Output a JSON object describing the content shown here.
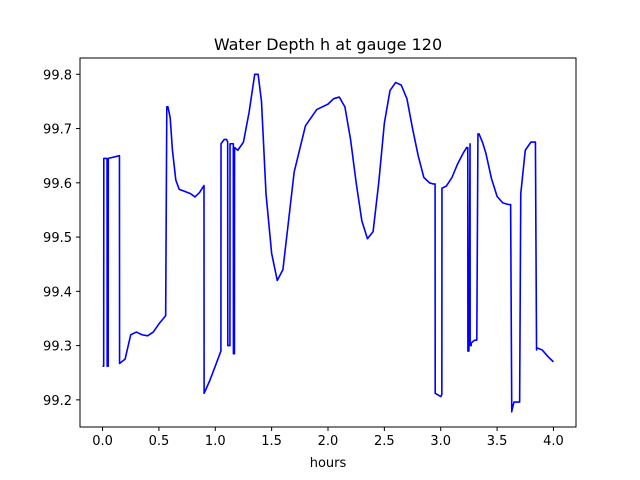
{
  "chart_data": {
    "type": "line",
    "title": "Water Depth h at gauge 120",
    "xlabel": "hours",
    "ylabel": "",
    "xlim": [
      -0.2,
      4.2
    ],
    "ylim": [
      99.15,
      99.83
    ],
    "xticks": [
      0.0,
      0.5,
      1.0,
      1.5,
      2.0,
      2.5,
      3.0,
      3.5,
      4.0
    ],
    "xtick_labels": [
      "0.0",
      "0.5",
      "1.0",
      "1.5",
      "2.0",
      "2.5",
      "3.0",
      "3.5",
      "4.0"
    ],
    "yticks": [
      99.2,
      99.3,
      99.4,
      99.5,
      99.6,
      99.7,
      99.8
    ],
    "ytick_labels": [
      "99.2",
      "99.3",
      "99.4",
      "99.5",
      "99.6",
      "99.7",
      "99.8"
    ],
    "grid": false,
    "color": "#0000ff",
    "series": [
      {
        "x": [
          0.0,
          0.01,
          0.011,
          0.04,
          0.041,
          0.05,
          0.051,
          0.15,
          0.151,
          0.2,
          0.25,
          0.3,
          0.35,
          0.4,
          0.45,
          0.5,
          0.56,
          0.57,
          0.58,
          0.6,
          0.62,
          0.65,
          0.68,
          0.72,
          0.78,
          0.82,
          0.86,
          0.9,
          0.901,
          0.95,
          1.0,
          1.05,
          1.051,
          1.08,
          1.1,
          1.11,
          1.111,
          1.13,
          1.131,
          1.15,
          1.16,
          1.161,
          1.17,
          1.171,
          1.2,
          1.25,
          1.3,
          1.35,
          1.38,
          1.41,
          1.45,
          1.5,
          1.55,
          1.6,
          1.65,
          1.7,
          1.8,
          1.9,
          2.0,
          2.05,
          2.1,
          2.15,
          2.2,
          2.25,
          2.3,
          2.35,
          2.4,
          2.45,
          2.5,
          2.55,
          2.6,
          2.65,
          2.7,
          2.75,
          2.8,
          2.85,
          2.9,
          2.93,
          2.95,
          2.951,
          3.0,
          3.01,
          3.011,
          3.05,
          3.1,
          3.15,
          3.2,
          3.23,
          3.24,
          3.241,
          3.25,
          3.26,
          3.261,
          3.27,
          3.271,
          3.3,
          3.32,
          3.33,
          3.34,
          3.35,
          3.37,
          3.4,
          3.45,
          3.5,
          3.55,
          3.6,
          3.62,
          3.63,
          3.631,
          3.65,
          3.7,
          3.71,
          3.72,
          3.75,
          3.8,
          3.84,
          3.85,
          3.851,
          3.9,
          3.95,
          4.0
        ],
        "y": [
          99.262,
          99.262,
          99.645,
          99.645,
          99.262,
          99.262,
          99.645,
          99.65,
          99.267,
          99.275,
          99.32,
          99.325,
          99.32,
          99.318,
          99.325,
          99.34,
          99.355,
          99.74,
          99.74,
          99.72,
          99.66,
          99.605,
          99.588,
          99.585,
          99.58,
          99.574,
          99.582,
          99.595,
          99.212,
          99.235,
          99.262,
          99.29,
          99.672,
          99.68,
          99.68,
          99.675,
          99.3,
          99.3,
          99.672,
          99.672,
          99.672,
          99.285,
          99.285,
          99.665,
          99.66,
          99.675,
          99.73,
          99.8,
          99.8,
          99.75,
          99.58,
          99.47,
          99.42,
          99.44,
          99.53,
          99.62,
          99.705,
          99.735,
          99.745,
          99.755,
          99.758,
          99.74,
          99.68,
          99.6,
          99.53,
          99.497,
          99.51,
          99.6,
          99.71,
          99.77,
          99.785,
          99.78,
          99.755,
          99.7,
          99.65,
          99.61,
          99.6,
          99.598,
          99.598,
          99.212,
          99.206,
          99.21,
          99.59,
          99.594,
          99.61,
          99.635,
          99.655,
          99.665,
          99.665,
          99.29,
          99.29,
          99.672,
          99.3,
          99.3,
          99.305,
          99.31,
          99.31,
          99.69,
          99.69,
          99.685,
          99.675,
          99.655,
          99.608,
          99.575,
          99.563,
          99.56,
          99.56,
          99.178,
          99.18,
          99.196,
          99.196,
          99.58,
          99.6,
          99.66,
          99.675,
          99.675,
          99.292,
          99.296,
          99.292,
          99.28,
          99.27
        ]
      }
    ]
  }
}
